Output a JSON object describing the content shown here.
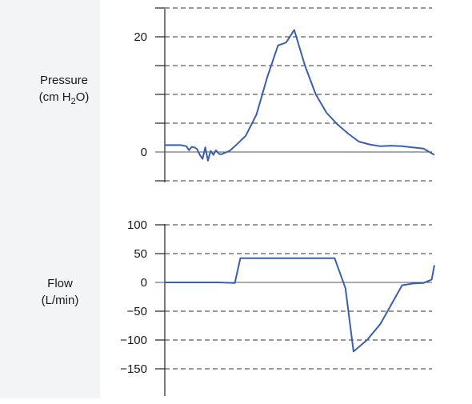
{
  "chart_data": [
    {
      "type": "line",
      "ylabel": {
        "line1": "Pressure",
        "line2_pre": "(cm H",
        "line2_sub": "2",
        "line2_post": "O)"
      },
      "yticks": [
        0,
        20
      ],
      "gridlines": [
        -5,
        5,
        10,
        15,
        20,
        25
      ],
      "ylim": [
        -5.5,
        26.5
      ],
      "line_color": "#3a5fb0",
      "x": [
        0,
        2,
        4,
        6,
        8,
        9,
        10,
        11,
        12,
        13,
        14,
        15,
        16,
        17,
        18,
        19,
        20,
        21,
        22,
        24,
        26,
        30,
        34,
        38,
        42,
        45,
        48,
        52,
        56,
        60,
        64,
        68,
        72,
        76,
        80,
        84,
        88,
        92,
        96,
        100
      ],
      "y": [
        1.2,
        1.2,
        1.2,
        1.2,
        1.0,
        0.3,
        0.9,
        0.8,
        0.5,
        -0.5,
        -1.2,
        0.8,
        -1.5,
        0.2,
        -0.5,
        0.3,
        -0.3,
        -0.4,
        -0.2,
        0.2,
        1.0,
        2.8,
        6.5,
        13.0,
        18.5,
        19.0,
        21.2,
        15.0,
        10.0,
        6.8,
        4.8,
        3.2,
        1.8,
        1.3,
        1.0,
        1.1,
        1.0,
        0.8,
        0.6,
        -0.5
      ]
    },
    {
      "type": "line",
      "ylabel": {
        "line1": "Flow",
        "line2": "(L/min)"
      },
      "yticks": [
        100,
        50,
        0,
        -50,
        -100,
        -150
      ],
      "gridlines": [
        100,
        50,
        -50,
        -100,
        -150
      ],
      "ylim": [
        -190,
        105
      ],
      "line_color": "#3a5fb0",
      "x": [
        0,
        10,
        20,
        26,
        28,
        45,
        63,
        67,
        70,
        75,
        80,
        88,
        92,
        96,
        99,
        100
      ],
      "y": [
        0,
        0,
        0,
        -1,
        42,
        42,
        42,
        -10,
        -120,
        -100,
        -72,
        -5,
        -2,
        -1,
        5,
        30
      ]
    }
  ]
}
